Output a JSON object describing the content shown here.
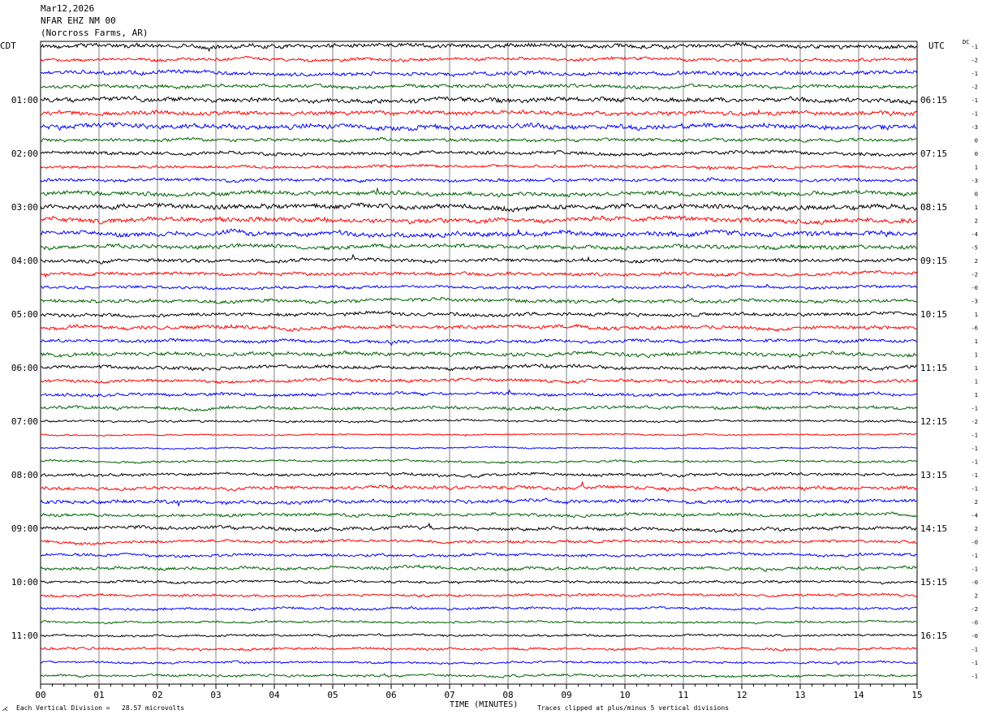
{
  "header": {
    "date": "Mar12,2026",
    "station": "NFAR EHZ NM 00",
    "location": "(Norcross Farms, AR)"
  },
  "left_zone": "CDT",
  "right_zone": "UTC",
  "dc_label": "DC",
  "footer": {
    "vertical_division": "Each Vertical Division =   28.57 microvolts",
    "xaxis_title": "TIME (MINUTES)",
    "clip_note": "Traces clipped at plus/minus 5 vertical divisions"
  },
  "colors": {
    "trace_cycle": [
      "#000000",
      "#ff0000",
      "#0000ff",
      "#006400"
    ],
    "grid": "#808080"
  },
  "chart_data": {
    "type": "line",
    "title": "",
    "xlabel": "TIME (MINUTES)",
    "xlim": [
      0,
      15
    ],
    "x_ticks": [
      "00",
      "01",
      "02",
      "03",
      "04",
      "05",
      "06",
      "07",
      "08",
      "09",
      "10",
      "11",
      "12",
      "13",
      "14",
      "15"
    ],
    "n_traces": 48,
    "left_hour_labels": [
      "01:00",
      "02:00",
      "03:00",
      "04:00",
      "05:00",
      "06:00",
      "07:00",
      "08:00",
      "09:00",
      "10:00",
      "11:00"
    ],
    "right_hour_labels": [
      "06:15",
      "07:15",
      "08:15",
      "09:15",
      "10:15",
      "11:15",
      "12:15",
      "13:15",
      "14:15",
      "15:15",
      "16:15"
    ],
    "dc_offsets": [
      "-1",
      "-2",
      "-1",
      "-2",
      "-1",
      "-1",
      "-3",
      "0",
      "0",
      "1",
      "-3",
      "0",
      "1",
      "2",
      "-4",
      "-5",
      "2",
      "-2",
      "-0",
      "-3",
      "1",
      "-6",
      "1",
      "1",
      "1",
      "1",
      "1",
      "-1",
      "-2",
      "-1",
      "-1",
      "-1",
      "-1",
      "-1",
      "2",
      "-4",
      "2",
      "-0",
      "-1",
      "-1",
      "-0",
      "2",
      "-2",
      "-0",
      "-0",
      "-1",
      "-1",
      "-1"
    ],
    "trace_amplitude": [
      0.6,
      0.45,
      0.55,
      0.5,
      0.65,
      0.6,
      0.7,
      0.45,
      0.5,
      0.4,
      0.45,
      0.6,
      0.7,
      0.65,
      0.7,
      0.6,
      0.5,
      0.45,
      0.4,
      0.5,
      0.5,
      0.55,
      0.45,
      0.55,
      0.5,
      0.45,
      0.45,
      0.45,
      0.3,
      0.2,
      0.2,
      0.3,
      0.4,
      0.5,
      0.5,
      0.45,
      0.5,
      0.4,
      0.4,
      0.45,
      0.35,
      0.35,
      0.35,
      0.3,
      0.3,
      0.35,
      0.3,
      0.35
    ]
  }
}
